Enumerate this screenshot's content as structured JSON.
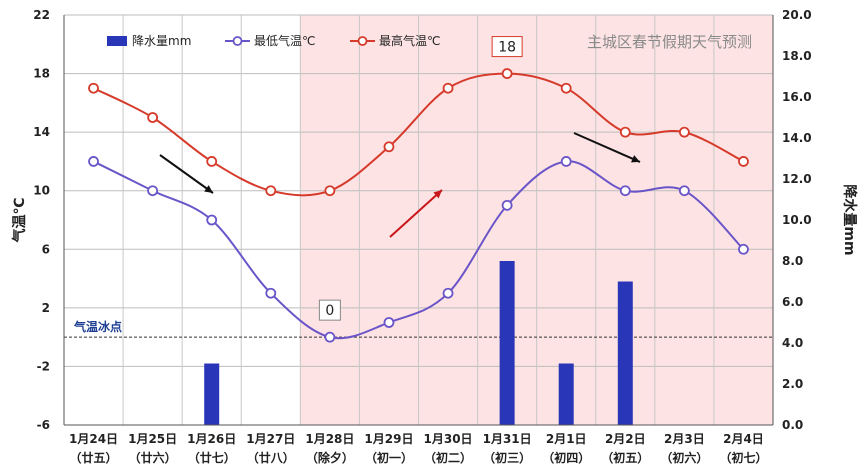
{
  "chart_data": {
    "type": "line",
    "title": "主城区春节假期天气预测",
    "categories": [
      [
        "1月24日",
        "（廿五）"
      ],
      [
        "1月25日",
        "（廿六）"
      ],
      [
        "1月26日",
        "（廿七）"
      ],
      [
        "1月27日",
        "（廿八）"
      ],
      [
        "1月28日",
        "（除夕）"
      ],
      [
        "1月29日",
        "（初一）"
      ],
      [
        "1月30日",
        "（初二）"
      ],
      [
        "1月31日",
        "（初三）"
      ],
      [
        "2月1日",
        "（初四）"
      ],
      [
        "2月2日",
        "（初五）"
      ],
      [
        "2月3日",
        "（初六）"
      ],
      [
        "2月4日",
        "（初七）"
      ]
    ],
    "ylabel_left": "气温℃",
    "ylabel_right": "降水量mm",
    "ylim_left": [
      -6,
      22
    ],
    "yticks_left": [
      "-6",
      "-2",
      "2",
      "6",
      "10",
      "14",
      "18",
      "22"
    ],
    "ylim_right": [
      0,
      20
    ],
    "yticks_right": [
      "0.0",
      "2.0",
      "4.0",
      "6.0",
      "8.0",
      "10.0",
      "12.0",
      "14.0",
      "16.0",
      "18.0",
      "20.0"
    ],
    "series": [
      {
        "name": "降水量mm",
        "type": "bar",
        "axis": "right",
        "color": "#2a36b8",
        "values": [
          0,
          0,
          3,
          0,
          0,
          0,
          0,
          8,
          3,
          7,
          0,
          0
        ]
      },
      {
        "name": "最低气温℃",
        "type": "line",
        "axis": "left",
        "color": "#6a55c8",
        "values": [
          12,
          10,
          8,
          3,
          0,
          1,
          3,
          9,
          12,
          10,
          10,
          6
        ]
      },
      {
        "name": "最高气温℃",
        "type": "line",
        "axis": "left",
        "color": "#d63a2a",
        "values": [
          17,
          15,
          12,
          10,
          10,
          13,
          17,
          18,
          17,
          14,
          14,
          12
        ]
      }
    ],
    "freezing_line": {
      "label": "气温冰点",
      "value": 0
    },
    "annotations": [
      {
        "text": "18",
        "series": "最高气温℃",
        "index": 7
      },
      {
        "text": "0",
        "series": "最低气温℃",
        "index": 4
      }
    ],
    "shaded_from_category": "1月28日",
    "shade_color": "#fde3e3",
    "legend_position": "top"
  }
}
